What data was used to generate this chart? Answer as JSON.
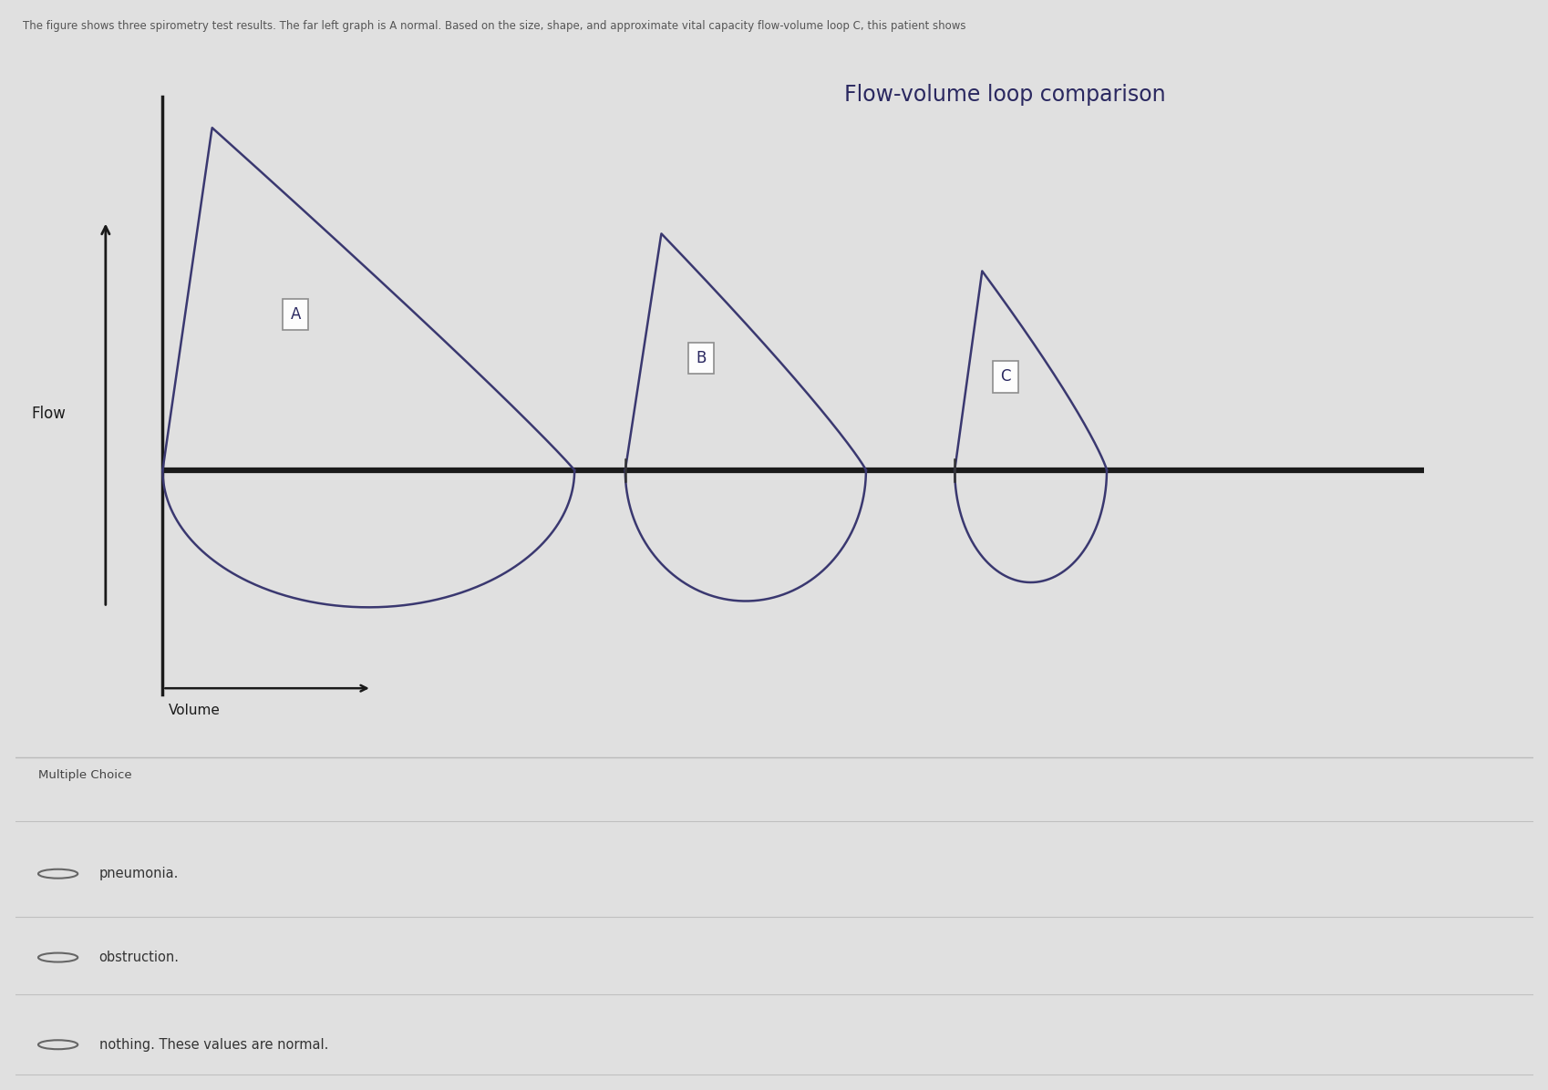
{
  "title": "Flow-volume loop comparison",
  "header_text": "The figure shows three spirometry test results. The far left graph is A normal. Based on the size, shape, and approximate vital capacity flow-volume loop C, this patient shows",
  "flow_label": "Flow",
  "volume_label": "Volume",
  "loop_labels": [
    "A",
    "B",
    "C"
  ],
  "curve_color": "#3a3870",
  "axis_color": "#1a1a1a",
  "page_bg": "#e0e0e0",
  "chart_bg": "#e8e8e8",
  "mc_bg": "#d8d8d8",
  "mc_title": "Multiple Choice",
  "choices": [
    "pneumonia.",
    "obstruction.",
    "nothing. These values are normal."
  ],
  "figsize": [
    16.99,
    11.96
  ],
  "dpi": 100,
  "title_fontsize": 17,
  "title_color": "#2a2860"
}
